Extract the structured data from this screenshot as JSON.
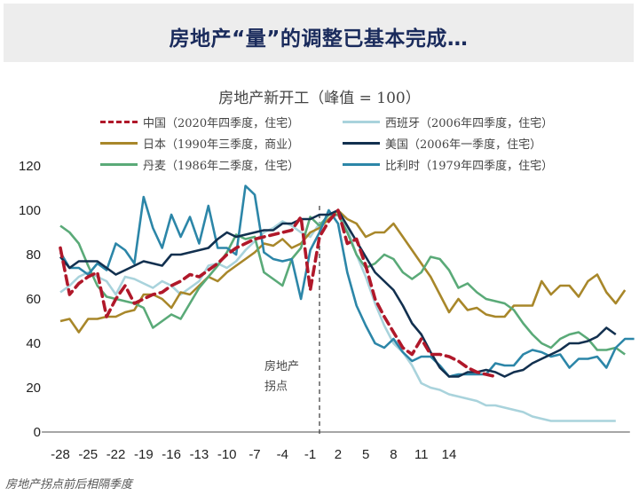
{
  "banner": {
    "title": "房地产“量”的调整已基本完成…"
  },
  "chart_data": {
    "type": "line",
    "title": "房地产新开工（峰值 = 100）",
    "xlabel": "房地产拐点前后相隔季度",
    "ylabel": "",
    "xlim": [
      -28,
      32
    ],
    "ylim": [
      0,
      120
    ],
    "yticks": [
      0,
      20,
      40,
      60,
      80,
      100,
      120
    ],
    "xticks": [
      -28,
      -25,
      -22,
      -19,
      -16,
      -13,
      -10,
      -7,
      -4,
      -1,
      2,
      5,
      8,
      11,
      14
    ],
    "grid": false,
    "legend_position": "top",
    "annotation": {
      "text_line1": "房地产",
      "text_line2": "拐点",
      "x": 0
    },
    "series": [
      {
        "name": "中国（2020年四季度，住宅）",
        "color": "#b0182a",
        "dashed": true,
        "x_start": -28,
        "values": [
          83,
          62,
          67,
          70,
          72,
          52,
          60,
          66,
          58,
          60,
          62,
          63,
          66,
          68,
          71,
          70,
          73,
          76,
          80,
          83,
          85,
          87,
          88,
          89,
          90,
          91,
          97,
          64,
          88,
          95,
          100,
          85,
          87,
          75,
          60,
          52,
          45,
          38,
          35,
          42,
          35,
          35,
          34,
          32,
          29,
          27,
          26,
          25
        ]
      },
      {
        "name": "西班牙（2006年四季度，住宅）",
        "color": "#a9d3dc",
        "dashed": false,
        "x_start": -28,
        "values": [
          63,
          66,
          70,
          72,
          70,
          68,
          62,
          70,
          69,
          67,
          65,
          68,
          66,
          62,
          65,
          68,
          75,
          76,
          74,
          77,
          82,
          86,
          90,
          92,
          95,
          93,
          90,
          88,
          94,
          96,
          98,
          92,
          80,
          70,
          58,
          48,
          40,
          36,
          30,
          22,
          20,
          19,
          17,
          16,
          15,
          14,
          12,
          12,
          11,
          10,
          9,
          7,
          6,
          5,
          5,
          5,
          5,
          5,
          5,
          5,
          5
        ]
      },
      {
        "name": "日本（1990年三季度，商业）",
        "color": "#a8872a",
        "dashed": false,
        "x_start": -28,
        "values": [
          50,
          51,
          45,
          51,
          51,
          52,
          52,
          54,
          55,
          62,
          62,
          60,
          56,
          63,
          62,
          66,
          70,
          68,
          72,
          75,
          78,
          81,
          85,
          84,
          87,
          83,
          85,
          90,
          92,
          96,
          100,
          96,
          94,
          88,
          90,
          90,
          94,
          88,
          82,
          76,
          70,
          62,
          54,
          60,
          55,
          56,
          53,
          52,
          52,
          57,
          57,
          57,
          68,
          62,
          66,
          66,
          61,
          68,
          71,
          63,
          58,
          64
        ]
      },
      {
        "name": "美国（2006年一季度，住宅）",
        "color": "#12304f",
        "dashed": false,
        "x_start": -28,
        "values": [
          79,
          74,
          77,
          77,
          77,
          74,
          71,
          73,
          75,
          77,
          76,
          75,
          80,
          80,
          81,
          82,
          83,
          87,
          90,
          88,
          89,
          90,
          91,
          91,
          94,
          94,
          96,
          96,
          98,
          98,
          100,
          93,
          86,
          79,
          72,
          68,
          64,
          57,
          49,
          44,
          36,
          29,
          25,
          25,
          27,
          27,
          28,
          27,
          25,
          27,
          28,
          31,
          33,
          35,
          37,
          40,
          40,
          41,
          43,
          47,
          44
        ]
      },
      {
        "name": "丹麦（1986年二季度，住宅）",
        "color": "#5aaa78",
        "dashed": false,
        "x_start": -28,
        "values": [
          93,
          90,
          85,
          75,
          66,
          61,
          60,
          59,
          58,
          56,
          47,
          50,
          53,
          51,
          58,
          65,
          70,
          75,
          81,
          89,
          87,
          88,
          72,
          69,
          66,
          78,
          83,
          97,
          93,
          98,
          98,
          90,
          80,
          74,
          76,
          80,
          78,
          72,
          69,
          72,
          79,
          78,
          73,
          65,
          67,
          63,
          60,
          59,
          58,
          55,
          49,
          44,
          40,
          38,
          42,
          44,
          45,
          42,
          37,
          37,
          38,
          35
        ]
      },
      {
        "name": "比利时（1979年四季度，住宅）",
        "color": "#2c86a8",
        "dashed": false,
        "x_start": -28,
        "values": [
          81,
          74,
          74,
          71,
          76,
          73,
          85,
          82,
          76,
          106,
          92,
          83,
          98,
          88,
          97,
          85,
          102,
          83,
          83,
          80,
          111,
          107,
          81,
          78,
          77,
          78,
          60,
          82,
          90,
          100,
          94,
          72,
          57,
          48,
          40,
          38,
          42,
          36,
          32,
          34,
          34,
          30,
          25,
          26,
          26,
          26,
          26,
          31,
          30,
          30,
          35,
          37,
          36,
          34,
          35,
          29,
          33,
          33,
          34,
          29,
          38,
          42,
          42
        ]
      }
    ]
  }
}
